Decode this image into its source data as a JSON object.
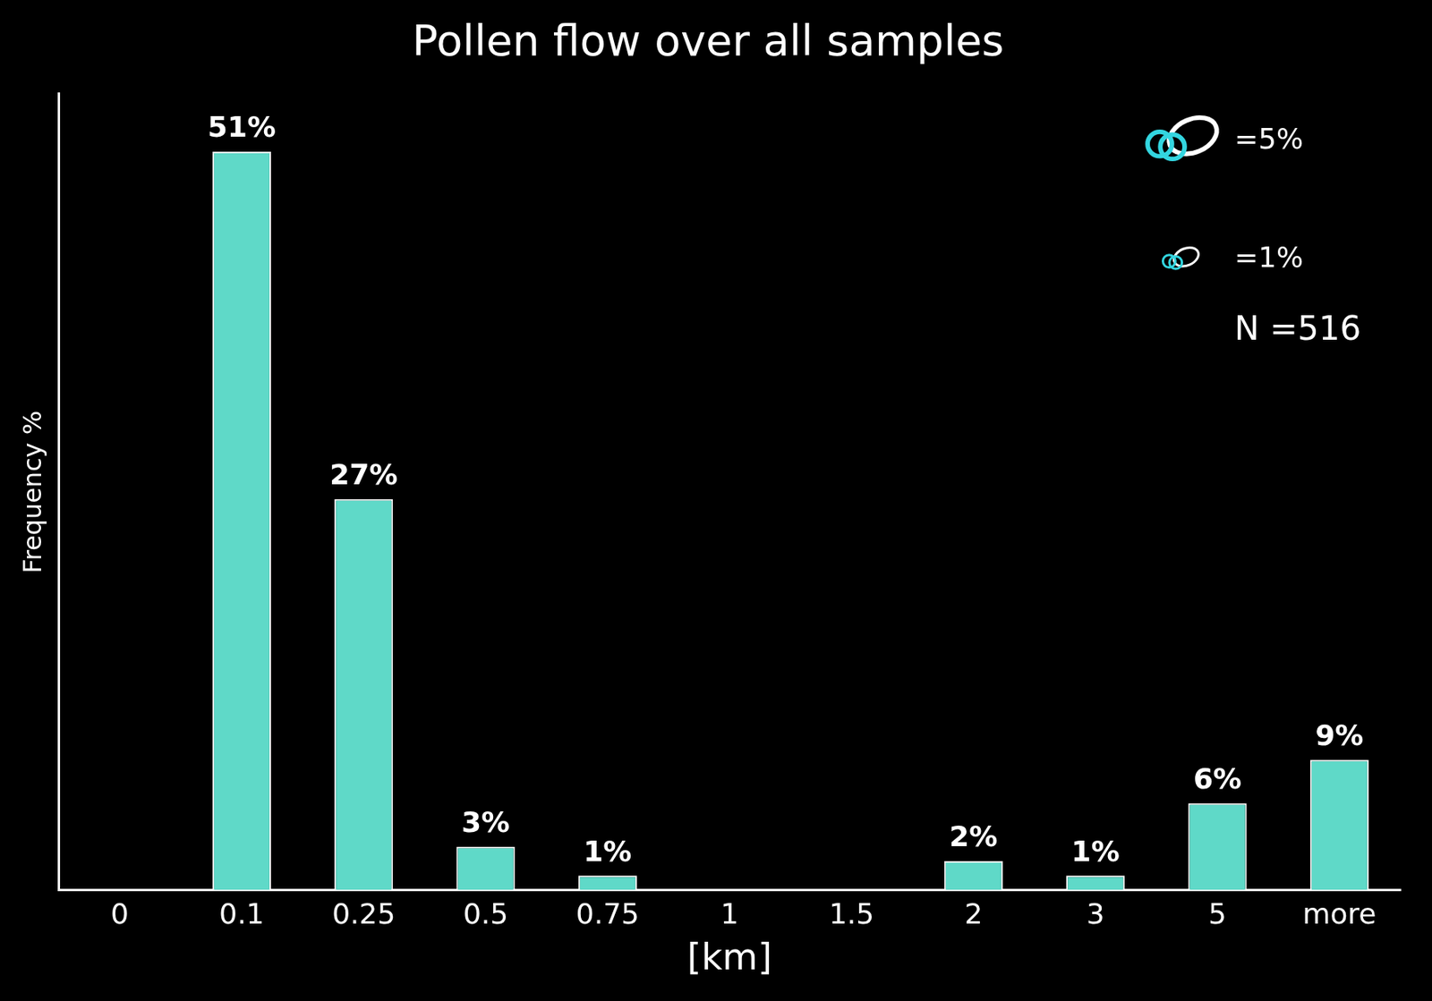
{
  "chart_data": {
    "type": "bar",
    "title": "Pollen flow over all samples",
    "x_label": "[km]",
    "y_label": "Frequency %",
    "categories": [
      "0",
      "0.1",
      "0.25",
      "0.5",
      "0.75",
      "1",
      "1.5",
      "2",
      "3",
      "5",
      "more"
    ],
    "values": [
      0,
      51,
      27,
      3,
      1,
      0,
      0,
      2,
      1,
      6,
      9
    ],
    "value_labels": [
      null,
      "51%",
      "27%",
      "3%",
      "1%",
      null,
      null,
      "2%",
      "1%",
      "6%",
      "9%"
    ],
    "color": "#5fd9c8",
    "ylim": [
      0,
      55
    ],
    "grid": false,
    "data_labels": true,
    "tick_labels": "x",
    "annotations": [
      "=5%",
      "=1%",
      "N =516"
    ]
  }
}
